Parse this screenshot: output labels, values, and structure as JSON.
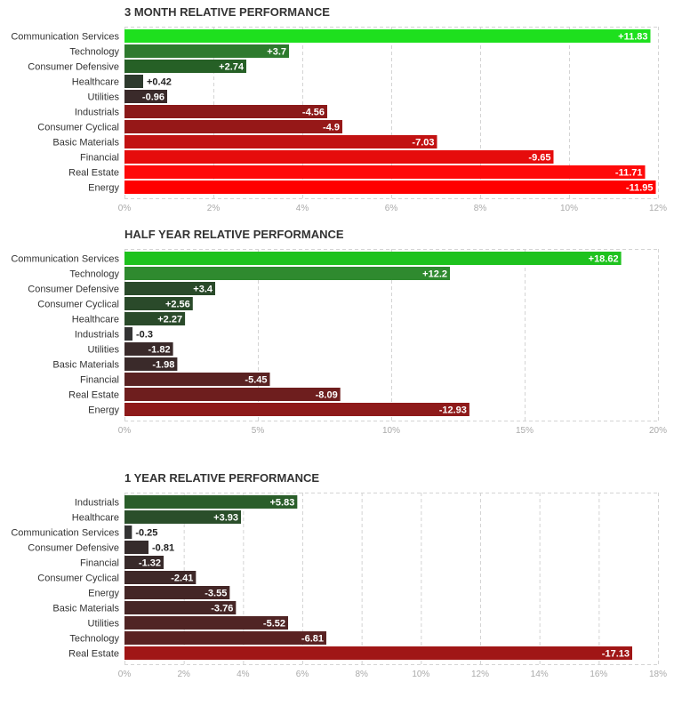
{
  "chart_data": [
    {
      "type": "bar",
      "orientation": "horizontal",
      "title": "3 MONTH RELATIVE PERFORMANCE",
      "categories": [
        "Communication Services",
        "Technology",
        "Consumer Defensive",
        "Healthcare",
        "Utilities",
        "Industrials",
        "Consumer Cyclical",
        "Basic Materials",
        "Financial",
        "Real Estate",
        "Energy"
      ],
      "values": [
        11.83,
        3.7,
        2.74,
        0.42,
        -0.96,
        -4.56,
        -4.9,
        -7.03,
        -9.65,
        -11.71,
        -11.95
      ],
      "value_labels": [
        "+11.83",
        "+3.7",
        "+2.74",
        "+0.42",
        "-0.96",
        "-4.56",
        "-4.9",
        "-7.03",
        "-9.65",
        "-11.71",
        "-11.95"
      ],
      "xlim": [
        0,
        12
      ],
      "ticks": [
        0,
        2,
        4,
        6,
        8,
        10,
        12
      ],
      "tick_labels": [
        "0%",
        "2%",
        "4%",
        "6%",
        "8%",
        "10%",
        "12%"
      ],
      "grid": true,
      "colors": [
        "#1ee01e",
        "#2e7a2e",
        "#266026",
        "#2d3a2d",
        "#3a2a2a",
        "#8b1a1a",
        "#961818",
        "#c21212",
        "#e60c0c",
        "#ff0a0a",
        "#ff0000"
      ]
    },
    {
      "type": "bar",
      "orientation": "horizontal",
      "title": "HALF YEAR RELATIVE PERFORMANCE",
      "categories": [
        "Communication Services",
        "Technology",
        "Consumer Defensive",
        "Consumer Cyclical",
        "Healthcare",
        "Industrials",
        "Utilities",
        "Basic Materials",
        "Financial",
        "Real Estate",
        "Energy"
      ],
      "values": [
        18.62,
        12.2,
        3.4,
        2.56,
        2.27,
        -0.3,
        -1.82,
        -1.98,
        -5.45,
        -8.09,
        -12.93
      ],
      "value_labels": [
        "+18.62",
        "+12.2",
        "+3.4",
        "+2.56",
        "+2.27",
        "-0.3",
        "-1.82",
        "-1.98",
        "-5.45",
        "-8.09",
        "-12.93"
      ],
      "xlim": [
        0,
        20
      ],
      "ticks": [
        0,
        5,
        10,
        15,
        20
      ],
      "tick_labels": [
        "0%",
        "5%",
        "10%",
        "15%",
        "20%"
      ],
      "grid": true,
      "colors": [
        "#1ec21e",
        "#2f8a2f",
        "#2a4a2a",
        "#2a4a2a",
        "#2a4a2a",
        "#333333",
        "#3a2a2a",
        "#3a2a2a",
        "#5a2222",
        "#6e1e1e",
        "#8e1a1a"
      ]
    },
    {
      "type": "bar",
      "orientation": "horizontal",
      "title": "1 YEAR RELATIVE PERFORMANCE",
      "categories": [
        "Industrials",
        "Healthcare",
        "Communication Services",
        "Consumer Defensive",
        "Financial",
        "Consumer Cyclical",
        "Energy",
        "Basic Materials",
        "Utilities",
        "Technology",
        "Real Estate"
      ],
      "values": [
        5.83,
        3.93,
        -0.25,
        -0.81,
        -1.32,
        -2.41,
        -3.55,
        -3.76,
        -5.52,
        -6.81,
        -17.13
      ],
      "value_labels": [
        "+5.83",
        "+3.93",
        "-0.25",
        "-0.81",
        "-1.32",
        "-2.41",
        "-3.55",
        "-3.76",
        "-5.52",
        "-6.81",
        "-17.13"
      ],
      "xlim": [
        0,
        18
      ],
      "ticks": [
        0,
        2,
        4,
        6,
        8,
        10,
        12,
        14,
        16,
        18
      ],
      "tick_labels": [
        "0%",
        "2%",
        "4%",
        "6%",
        "8%",
        "10%",
        "12%",
        "14%",
        "16%",
        "18%"
      ],
      "grid": true,
      "colors": [
        "#2a5e2a",
        "#2a4e2a",
        "#333333",
        "#352b2b",
        "#382a2a",
        "#3e2828",
        "#442626",
        "#462626",
        "#502424",
        "#5a2222",
        "#a01616"
      ]
    }
  ]
}
